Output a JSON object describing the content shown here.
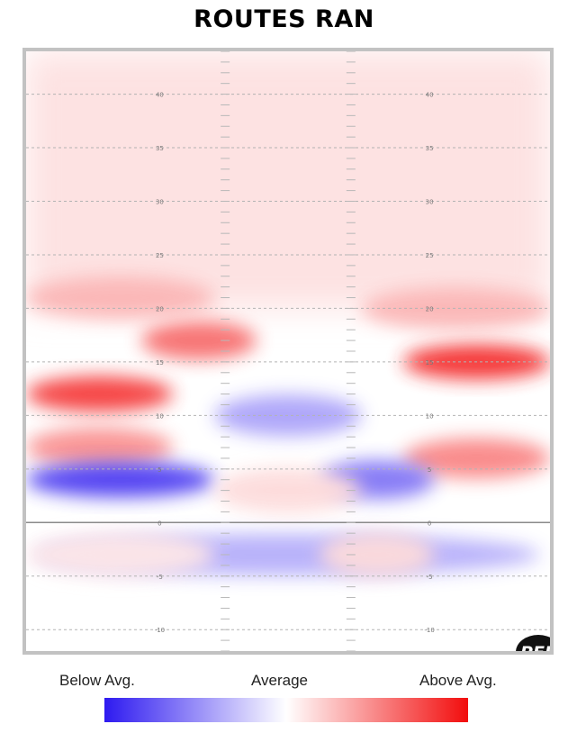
{
  "title": "ROUTES RAN",
  "legend": {
    "below_label": "Below Avg.",
    "average_label": "Average",
    "above_label": "Above Avg.",
    "low_color": "#2e1af0",
    "mid_color": "#ffffff",
    "high_color": "#f20d0d"
  },
  "logo": {
    "text": "PFF",
    "icon": "pff-logo-icon"
  },
  "chart_data": {
    "type": "heatmap",
    "title": "ROUTES RAN",
    "xlabel": "",
    "ylabel": "",
    "ylim": [
      -12,
      44
    ],
    "yticks": [
      40,
      35,
      30,
      25,
      20,
      15,
      10,
      5,
      0,
      -5,
      -10
    ],
    "ytick_labels": [
      "40",
      "35",
      "30",
      "25",
      "20",
      "15",
      "10",
      "5",
      "0",
      "-5",
      "-10"
    ],
    "line_of_scrimmage": 0,
    "grid": true,
    "colorscale": [
      "#2e1af0",
      "#ffffff",
      "#f20d0d"
    ],
    "zlim": [
      -1,
      1
    ],
    "regions": [
      {
        "zone": "left-outside",
        "yard": 12,
        "value": 0.8
      },
      {
        "zone": "right-outside",
        "yard": 15,
        "value": 0.85
      },
      {
        "zone": "left-middle",
        "yard": 17,
        "value": 0.6
      },
      {
        "zone": "right-outside",
        "yard": 6,
        "value": 0.5
      },
      {
        "zone": "left-outside",
        "yard": 7,
        "value": 0.45
      },
      {
        "zone": "left",
        "yard": 21,
        "value": 0.3
      },
      {
        "zone": "right",
        "yard": 20,
        "value": 0.3
      },
      {
        "zone": "left",
        "yard": 4,
        "value": -0.85
      },
      {
        "zone": "right-middle",
        "yard": 4,
        "value": -0.6
      },
      {
        "zone": "middle",
        "yard": 10,
        "value": -0.4
      },
      {
        "zone": "all",
        "yard": -3,
        "value": -0.35
      },
      {
        "zone": "middle",
        "yard": 3,
        "value": 0.15
      },
      {
        "zone": "left",
        "yard": -3,
        "value": 0.1
      },
      {
        "zone": "right-middle",
        "yard": -3,
        "value": 0.15
      }
    ]
  }
}
